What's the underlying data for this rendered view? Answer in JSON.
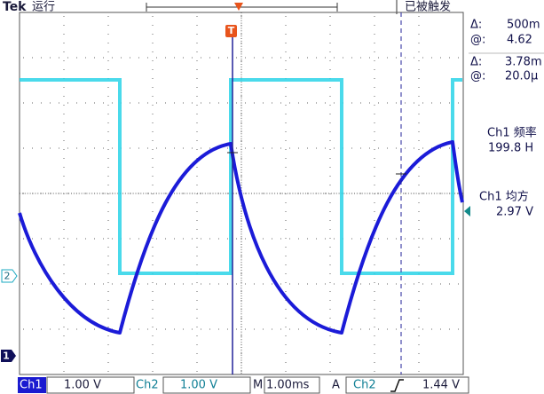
{
  "header": {
    "brand": "Tek",
    "status": "运行",
    "trigger_state": "已被触发"
  },
  "markers": {
    "trigger": "T",
    "ch2": "2",
    "ch1": "1"
  },
  "readouts": [
    {
      "label": "Δ:",
      "value": "500m"
    },
    {
      "label": "@:",
      "value": "4.62"
    },
    {
      "label": "Δ:",
      "value": "3.78m"
    },
    {
      "label": "@:",
      "value": "20.0μ"
    }
  ],
  "measurements": [
    {
      "label": "Ch1 频率",
      "value": "199.8 H"
    },
    {
      "label": "Ch1 均方",
      "value": "2.97 V"
    }
  ],
  "status_bar": {
    "ch1": "Ch1",
    "ch1_scale": "1.00 V",
    "ch2": "Ch2",
    "ch2_scale": "1.00 V",
    "timebase_label": "M",
    "timebase": "1.00ms",
    "trigger_label": "A",
    "trigger_source": "Ch2",
    "trigger_level": "1.44 V"
  }
}
